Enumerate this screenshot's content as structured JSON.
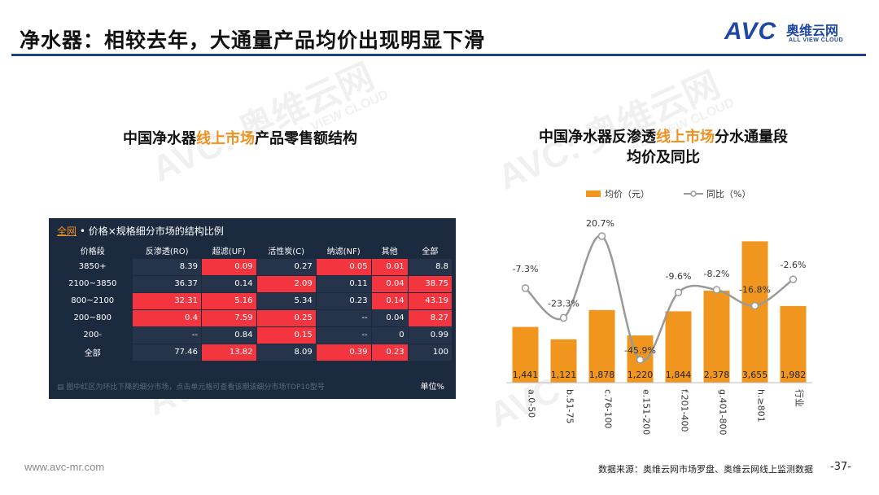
{
  "header": {
    "title": "净水器：相较去年，大通量产品均价出现明显下滑"
  },
  "logo": {
    "avc": "AVC",
    "cn": "奥维云网",
    "en": "ALL VIEW CLOUD"
  },
  "watermark": {
    "avc": "AVC",
    "cn": "奥维云网",
    "en": "ALL VIEW CLOUD"
  },
  "left_panel": {
    "title_pre": "中国净水器",
    "title_hl": "线上市场",
    "title_post": "产品零售额结构",
    "table_title_link": "全网",
    "table_title_rest": " • 价格×规格细分市场的结构比例",
    "columns": [
      "价格段",
      "反渗透(RO)",
      "超滤(UF)",
      "活性炭(C)",
      "纳滤(NF)",
      "其他",
      "全部"
    ],
    "rows": [
      {
        "label": "3850+",
        "cells": [
          "8.39",
          "0.09",
          "0.27",
          "0.05",
          "0.01",
          "8.8"
        ]
      },
      {
        "label": "2100~3850",
        "cells": [
          "36.37",
          "0.14",
          "2.09",
          "0.11",
          "0.04",
          "38.75"
        ]
      },
      {
        "label": "800~2100",
        "cells": [
          "32.31",
          "5.16",
          "5.34",
          "0.23",
          "0.14",
          "43.19"
        ]
      },
      {
        "label": "200~800",
        "cells": [
          "0.4",
          "7.59",
          "0.25",
          "--",
          "0.04",
          "8.27"
        ]
      },
      {
        "label": "200-",
        "cells": [
          "--",
          "0.84",
          "0.15",
          "--",
          "0",
          "0.99"
        ]
      },
      {
        "label": "全部",
        "cells": [
          "77.46",
          "13.82",
          "8.09",
          "0.39",
          "0.23",
          "100"
        ]
      }
    ],
    "highlight_color": "#f2353f",
    "note": "图中红区为环比下降的细分市场，点击单元格可查看该期该细分市场TOP10型号",
    "unit": "单位%"
  },
  "right_panel": {
    "title_line1_pre": "中国净水器反渗透",
    "title_line1_hl": "线上市场",
    "title_line1_post": "分水通量段",
    "title_line2": "均价及同比",
    "legend_bar": "均价（元）",
    "legend_line": "同比（%）"
  },
  "chart_data": {
    "type": "bar",
    "categories": [
      "a.0-50",
      "b.51-75",
      "c.76-100",
      "e.151-200",
      "f.201-400",
      "g.401-800",
      "h.≥801",
      "行业"
    ],
    "series": [
      {
        "name": "均价（元）",
        "type": "bar",
        "values": [
          1441,
          1121,
          1878,
          1220,
          1844,
          2378,
          3655,
          1982
        ],
        "color": "#f0961e"
      },
      {
        "name": "同比（%）",
        "type": "line",
        "values": [
          -7.3,
          -23.3,
          20.7,
          -45.9,
          -9.6,
          -8.2,
          -16.8,
          -2.6
        ],
        "color": "#9a9a9a"
      }
    ],
    "bar_labels": [
      "1,441",
      "1,121",
      "1,878",
      "1,220",
      "1,844",
      "2,378",
      "3,655",
      "1,982"
    ],
    "line_labels": [
      "-7.3%",
      "-23.3%",
      "20.7%",
      "-45.9%",
      "-9.6%",
      "-8.2%",
      "-16.8%",
      "-2.6%"
    ],
    "grid": false,
    "legend": "top"
  },
  "footer": {
    "url": "www.avc-mr.com",
    "source": "数据来源：奥维云网市场罗盘、奥维云网线上监测数据",
    "page": "-37-"
  }
}
